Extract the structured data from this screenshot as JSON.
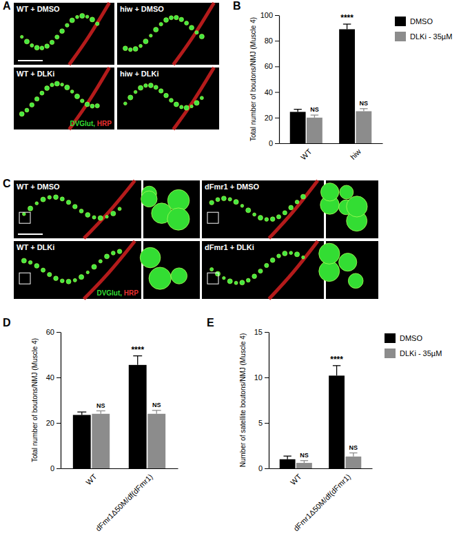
{
  "chart_data": [
    {
      "type": "bar",
      "title": "B",
      "ylabel": "Total number of boutons/NMJ (Muscle 4)",
      "categories": [
        "WT",
        "hiw"
      ],
      "series": [
        {
          "name": "DMSO",
          "color": "#000000",
          "values": [
            24.5,
            89
          ],
          "errors": [
            2,
            4
          ],
          "annotations": [
            null,
            "****"
          ]
        },
        {
          "name": "DLKi - 35µM",
          "color": "#8c8c8c",
          "values": [
            20,
            25
          ],
          "errors": [
            2,
            2
          ],
          "annotations": [
            "NS",
            "NS"
          ]
        }
      ],
      "ylim": [
        0,
        100
      ],
      "yticks": [
        0,
        20,
        40,
        60,
        80,
        100
      ],
      "legend": "right"
    },
    {
      "type": "bar",
      "title": "D",
      "ylabel": "Total number of boutons/NMJ (Muscle 4)",
      "categories": [
        "WT",
        "dFmr1Δ50M/df(dFmr1)"
      ],
      "series": [
        {
          "color": "#000000",
          "values": [
            23.5,
            45.5
          ],
          "errors": [
            1.3,
            4
          ],
          "annotations": [
            null,
            "****"
          ]
        },
        {
          "color": "#8c8c8c",
          "values": [
            24,
            24
          ],
          "errors": [
            1.3,
            1.5
          ],
          "annotations": [
            "NS",
            "NS"
          ]
        }
      ],
      "ylim": [
        0,
        60
      ],
      "yticks": [
        0,
        20,
        40,
        60
      ]
    },
    {
      "type": "bar",
      "title": "E",
      "ylabel": "Number of satellite boutons/NMJ (Muscle 4)",
      "categories": [
        "WT",
        "dFmr1Δ50M/df(dFmr1)"
      ],
      "series": [
        {
          "name": "DMSO",
          "color": "#000000",
          "values": [
            1,
            10.2
          ],
          "errors": [
            0.35,
            1.1
          ],
          "annotations": [
            null,
            "****"
          ]
        },
        {
          "name": "DLKi - 35µM",
          "color": "#8c8c8c",
          "values": [
            0.6,
            1.3
          ],
          "errors": [
            0.25,
            0.4
          ],
          "annotations": [
            "NS",
            "NS"
          ]
        }
      ],
      "ylim": [
        0,
        15
      ],
      "yticks": [
        0,
        5,
        10,
        15
      ],
      "legend": "right"
    }
  ],
  "panels": [
    {
      "title": "A",
      "images": [
        {
          "label": "WT + DMSO"
        },
        {
          "label": "hiw + DMSO"
        },
        {
          "label": "WT + DLKi"
        },
        {
          "label": "hiw + DLKi"
        }
      ],
      "stain": [
        {
          "text": "DVGlut,",
          "color": "#33dd33"
        },
        {
          "text": "HRP",
          "color": "#e83030"
        }
      ]
    },
    {
      "title": "C",
      "images": [
        {
          "label": "WT + DMSO"
        },
        {
          "label": "dFmr1 + DMSO"
        },
        {
          "label": "WT + DLKi"
        },
        {
          "label": "dFmr1 + DLKi"
        }
      ],
      "stain": [
        {
          "text": "DVGlut,",
          "color": "#33dd33"
        },
        {
          "text": "HRP",
          "color": "#e83030"
        }
      ]
    }
  ]
}
